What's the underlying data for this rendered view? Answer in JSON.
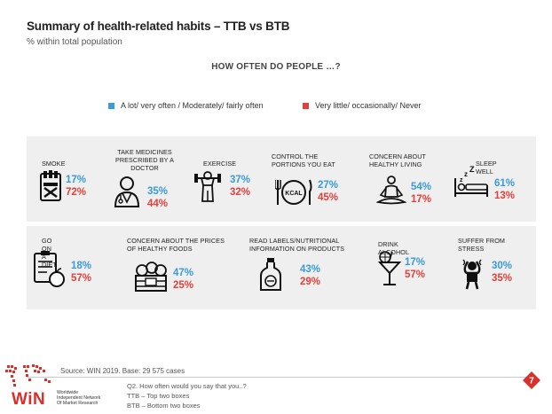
{
  "header": {
    "title": "Summary of health-related habits – TTB vs BTB",
    "subtitle": "% within total population",
    "question": "HOW OFTEN DO PEOPLE …?"
  },
  "legend": {
    "ttb_label": "A lot/ very often / Moderately/ fairly often",
    "btb_label": "Very little/ occasionally/ Never",
    "ttb_color": "#3a9bd5",
    "btb_color": "#e2403a"
  },
  "row1": [
    {
      "label": "SMOKE",
      "ttb": "17%",
      "btb": "72%",
      "icon": "cigarette-pack-icon"
    },
    {
      "label": "TAKE MEDICINES PRESCRIBED BY A DOCTOR",
      "ttb": "35%",
      "btb": "44%",
      "icon": "doctor-icon"
    },
    {
      "label": "EXERCISE",
      "ttb": "37%",
      "btb": "32%",
      "icon": "weightlifter-icon"
    },
    {
      "label": "CONTROL THE PORTIONS YOU EAT",
      "ttb": "27%",
      "btb": "45%",
      "icon": "plate-kcal-icon"
    },
    {
      "label": "CONCERN ABOUT HEALTHY LIVING",
      "ttb": "54%",
      "btb": "17%",
      "icon": "meditation-icon"
    },
    {
      "label": "SLEEP WELL",
      "ttb": "61%",
      "btb": "13%",
      "icon": "bed-sleep-icon"
    }
  ],
  "row2": [
    {
      "label": "GO ON A DIET",
      "ttb": "18%",
      "btb": "57%",
      "icon": "diet-checklist-icon"
    },
    {
      "label": "CONCERN ABOUT THE PRICES OF HEALTHY FOODS",
      "ttb": "47%",
      "btb": "25%",
      "icon": "vegetable-box-icon"
    },
    {
      "label": "READ LABELS/NUTRITIONAL INFORMATION ON PRODUCTS",
      "ttb": "43%",
      "btb": "29%",
      "icon": "bottle-label-icon"
    },
    {
      "label": "DRINK ALCOHOL",
      "ttb": "17%",
      "btb": "57%",
      "icon": "cocktail-icon"
    },
    {
      "label": "SUFFER FROM STRESS",
      "ttb": "30%",
      "btb": "35%",
      "icon": "stressed-person-icon"
    }
  ],
  "footer": {
    "source": "Source: WIN 2019. Base: 29 575 cases",
    "note_q": "Q2. How often would you say that you..?",
    "note_ttb": "TTB – Top two boxes",
    "note_btb": "BTB – Bottom two boxes",
    "logo_text": "WiN",
    "logo_sub1": "Worldwide",
    "logo_sub2": "Independent Network",
    "logo_sub3": "Of Market Research",
    "page_number": "7"
  }
}
